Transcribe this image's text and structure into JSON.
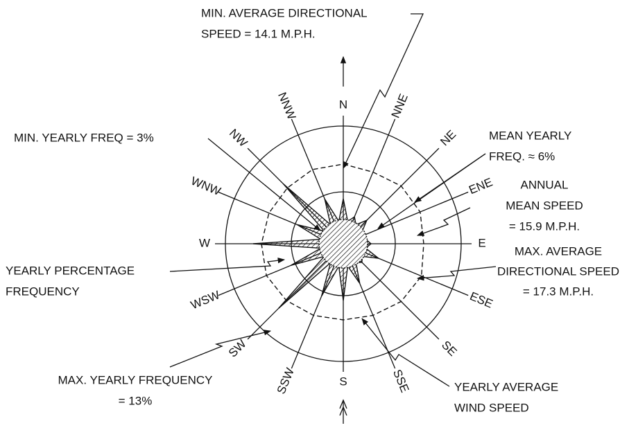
{
  "directions": [
    "N",
    "NNE",
    "NE",
    "ENE",
    "E",
    "ESE",
    "SE",
    "SSE",
    "S",
    "SSW",
    "SW",
    "WSW",
    "W",
    "WNW",
    "NW",
    "NNW"
  ],
  "annotations": {
    "min_avg_speed": [
      "MIN. AVERAGE DIRECTIONAL",
      "SPEED = 14.1 M.P.H."
    ],
    "min_yearly_freq": [
      "MIN. YEARLY FREQ = 3%"
    ],
    "mean_yearly_freq": [
      "MEAN YEARLY",
      "FREQ. ≈ 6%"
    ],
    "annual_mean_speed": [
      "ANNUAL",
      "MEAN SPEED",
      "= 15.9 M.P.H."
    ],
    "max_avg_speed": [
      "MAX. AVERAGE",
      "DIRECTIONAL SPEED",
      "= 17.3 M.P.H."
    ],
    "yearly_pct_freq": [
      "YEARLY PERCENTAGE",
      "FREQUENCY"
    ],
    "max_yearly_freq": [
      "MAX. YEARLY FREQUENCY",
      "= 13%"
    ],
    "yearly_avg_speed": [
      "YEARLY AVERAGE",
      "WIND SPEED"
    ]
  }
}
